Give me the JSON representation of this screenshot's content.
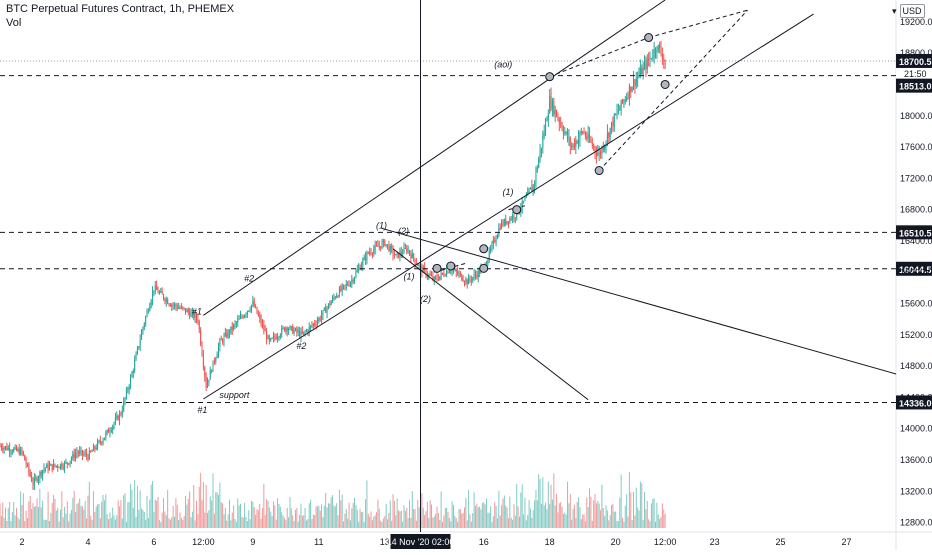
{
  "header": {
    "symbol_title": "BTC Perpetual Futures Contract, 1h, PHEMEX",
    "volume_label": "Vol",
    "currency_badge": "USD"
  },
  "colors": {
    "bull": "#26a69a",
    "bear": "#ef5350",
    "bull_vol": "#80cbc4",
    "bear_vol": "#ef9a9a",
    "line": "#131722",
    "price_label_bg": "#131722",
    "price_label_fg": "#ffffff"
  },
  "chart_data": {
    "type": "candlestick",
    "title": "BTC Perpetual Futures Contract, 1h, PHEMEX",
    "y_scale": "linear",
    "ylim": [
      12680,
      19480
    ],
    "y_ticks": [
      12800,
      13200,
      13600,
      14000,
      14400,
      14800,
      15200,
      15600,
      16000,
      16400,
      16800,
      17200,
      17600,
      18000,
      18400,
      18800,
      19200
    ],
    "x_start": "2020-11-01T08:00",
    "x_end": "2020-11-28T12:00",
    "x_ticks": [
      {
        "label": "2",
        "t": "2020-11-02T00:00"
      },
      {
        "label": "4",
        "t": "2020-11-04T00:00"
      },
      {
        "label": "6",
        "t": "2020-11-06T00:00"
      },
      {
        "label": "12:00",
        "t": "2020-11-07T12:00"
      },
      {
        "label": "9",
        "t": "2020-11-09T00:00"
      },
      {
        "label": "11",
        "t": "2020-11-11T00:00"
      },
      {
        "label": "13",
        "t": "2020-11-13T00:00"
      },
      {
        "label": "16",
        "t": "2020-11-16T00:00"
      },
      {
        "label": "18",
        "t": "2020-11-18T00:00"
      },
      {
        "label": "20",
        "t": "2020-11-20T00:00"
      },
      {
        "label": "12:00",
        "t": "2020-11-21T12:00"
      },
      {
        "label": "23",
        "t": "2020-11-23T00:00"
      },
      {
        "label": "25",
        "t": "2020-11-25T00:00"
      },
      {
        "label": "27",
        "t": "2020-11-27T00:00"
      }
    ],
    "crosshair": {
      "t": "2020-11-14T02:00",
      "label": "14 Nov '20  02:00"
    },
    "price_series_keypoints": [
      [
        "2020-11-01T08:00",
        13780
      ],
      [
        "2020-11-02T00:00",
        13700
      ],
      [
        "2020-11-02T08:00",
        13300
      ],
      [
        "2020-11-02T16:00",
        13500
      ],
      [
        "2020-11-03T08:00",
        13550
      ],
      [
        "2020-11-03T16:00",
        13700
      ],
      [
        "2020-11-04T00:00",
        13650
      ],
      [
        "2020-11-04T12:00",
        13900
      ],
      [
        "2020-11-05T00:00",
        14200
      ],
      [
        "2020-11-05T08:00",
        14700
      ],
      [
        "2020-11-05T16:00",
        15300
      ],
      [
        "2020-11-06T00:00",
        15800
      ],
      [
        "2020-11-06T12:00",
        15600
      ],
      [
        "2020-11-07T00:00",
        15500
      ],
      [
        "2020-11-07T08:00",
        15400
      ],
      [
        "2020-11-07T14:00",
        14550
      ],
      [
        "2020-11-08T00:00",
        15100
      ],
      [
        "2020-11-08T12:00",
        15350
      ],
      [
        "2020-11-09T00:00",
        15600
      ],
      [
        "2020-11-09T12:00",
        15100
      ],
      [
        "2020-11-10T00:00",
        15300
      ],
      [
        "2020-11-10T12:00",
        15200
      ],
      [
        "2020-11-11T00:00",
        15400
      ],
      [
        "2020-11-11T12:00",
        15700
      ],
      [
        "2020-11-12T00:00",
        15900
      ],
      [
        "2020-11-12T12:00",
        16250
      ],
      [
        "2020-11-13T00:00",
        16380
      ],
      [
        "2020-11-13T08:00",
        16200
      ],
      [
        "2020-11-13T16:00",
        16300
      ],
      [
        "2020-11-14T02:00",
        16050
      ],
      [
        "2020-11-14T12:00",
        15900
      ],
      [
        "2020-11-15T00:00",
        16050
      ],
      [
        "2020-11-15T12:00",
        15880
      ],
      [
        "2020-11-16T00:00",
        16050
      ],
      [
        "2020-11-16T12:00",
        16600
      ],
      [
        "2020-11-17T00:00",
        16750
      ],
      [
        "2020-11-17T12:00",
        17100
      ],
      [
        "2020-11-17T20:00",
        17800
      ],
      [
        "2020-11-18T00:00",
        18200
      ],
      [
        "2020-11-18T08:00",
        17900
      ],
      [
        "2020-11-18T16:00",
        17600
      ],
      [
        "2020-11-19T00:00",
        17800
      ],
      [
        "2020-11-19T12:00",
        17500
      ],
      [
        "2020-11-20T00:00",
        18000
      ],
      [
        "2020-11-20T12:00",
        18400
      ],
      [
        "2020-11-21T00:00",
        18700
      ],
      [
        "2020-11-21T06:00",
        18900
      ],
      [
        "2020-11-21T12:00",
        18700
      ]
    ],
    "levels": [
      {
        "label": "16510.5",
        "price": 16510.5
      },
      {
        "label": "16044.5",
        "price": 16044.5
      },
      {
        "label": "14336.0",
        "price": 14336.0
      }
    ],
    "current_price": {
      "label": "18700.5",
      "price": 18700.5
    },
    "countdown": {
      "label": "21:50"
    },
    "aoi_level": {
      "label": "18513.0",
      "price": 18513.0
    },
    "annotations": [
      {
        "text": "#1",
        "t": "2020-11-07T08:00",
        "p": 15460
      },
      {
        "text": "#1",
        "t": "2020-11-07T12:00",
        "p": 14200
      },
      {
        "text": "#2",
        "t": "2020-11-08T22:00",
        "p": 15880
      },
      {
        "text": "#2",
        "t": "2020-11-10T12:00",
        "p": 15020
      },
      {
        "text": "support",
        "t": "2020-11-08T04:00",
        "p": 14390
      },
      {
        "text": "(1)",
        "t": "2020-11-12T22:00",
        "p": 16560
      },
      {
        "text": "(2)",
        "t": "2020-11-13T14:00",
        "p": 16490
      },
      {
        "text": "(1)",
        "t": "2020-11-13T18:00",
        "p": 15910
      },
      {
        "text": "(2)",
        "t": "2020-11-14T06:00",
        "p": 15620
      },
      {
        "text": "(1)",
        "t": "2020-11-16T18:00",
        "p": 16990
      },
      {
        "text": "(aoi)",
        "t": "2020-11-16T12:00",
        "p": 18620
      }
    ]
  }
}
